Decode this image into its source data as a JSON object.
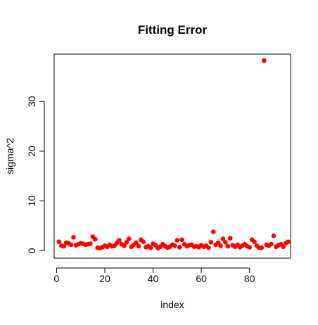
{
  "chart_data": {
    "type": "scatter",
    "title": "Fitting Error",
    "xlabel": "index",
    "ylabel": "sigma^2",
    "xlim": [
      -1,
      97
    ],
    "ylim": [
      -1.5,
      39.5
    ],
    "x_ticks": [
      0,
      20,
      40,
      60,
      80
    ],
    "y_ticks": [
      0,
      10,
      20,
      30
    ],
    "point_color": "#ff0000",
    "grid": false,
    "legend": "none",
    "series": [
      {
        "x": [
          1,
          2,
          3,
          4,
          5,
          6,
          7,
          8,
          9,
          10,
          11,
          12,
          13,
          14,
          15,
          16,
          17,
          18,
          19,
          20,
          21,
          22,
          23,
          24,
          25,
          26,
          27,
          28,
          29,
          30,
          31,
          32,
          33,
          34,
          35,
          36,
          37,
          38,
          39,
          40,
          41,
          42,
          43,
          44,
          45,
          46,
          47,
          48,
          49,
          50,
          51,
          52,
          53,
          54,
          55,
          56,
          57,
          58,
          59,
          60,
          61,
          62,
          63,
          64,
          65,
          66,
          67,
          68,
          69,
          70,
          71,
          72,
          73,
          74,
          75,
          76,
          77,
          78,
          79,
          80,
          81,
          82,
          83,
          84,
          85,
          86,
          87,
          88,
          89,
          90,
          91,
          92,
          93,
          94,
          95,
          96
        ],
        "y": [
          1.8,
          1.0,
          0.9,
          1.6,
          1.5,
          1.2,
          2.7,
          1.1,
          1.3,
          1.5,
          1.4,
          1.2,
          1.3,
          1.4,
          2.8,
          2.3,
          0.6,
          0.5,
          0.7,
          1.0,
          0.8,
          1.2,
          0.9,
          1.0,
          1.6,
          2.1,
          1.3,
          1.0,
          1.7,
          2.4,
          0.8,
          1.2,
          1.6,
          0.9,
          2.2,
          1.8,
          0.7,
          0.9,
          0.6,
          1.4,
          1.1,
          0.5,
          0.8,
          1.3,
          0.9,
          0.6,
          0.8,
          1.2,
          1.0,
          2.1,
          0.7,
          2.2,
          1.3,
          0.9,
          1.1,
          1.2,
          0.8,
          0.9,
          0.7,
          1.1,
          0.8,
          1.0,
          0.6,
          1.7,
          3.8,
          1.2,
          1.6,
          1.0,
          2.4,
          1.7,
          0.9,
          2.5,
          1.1,
          0.8,
          1.2,
          0.7,
          1.0,
          1.3,
          0.9,
          0.7,
          2.2,
          1.8,
          1.0,
          0.6,
          0.6,
          38.2,
          1.2,
          1.0,
          1.3,
          3.0,
          0.8,
          1.1,
          1.3,
          0.8,
          1.5,
          1.8
        ]
      }
    ]
  }
}
